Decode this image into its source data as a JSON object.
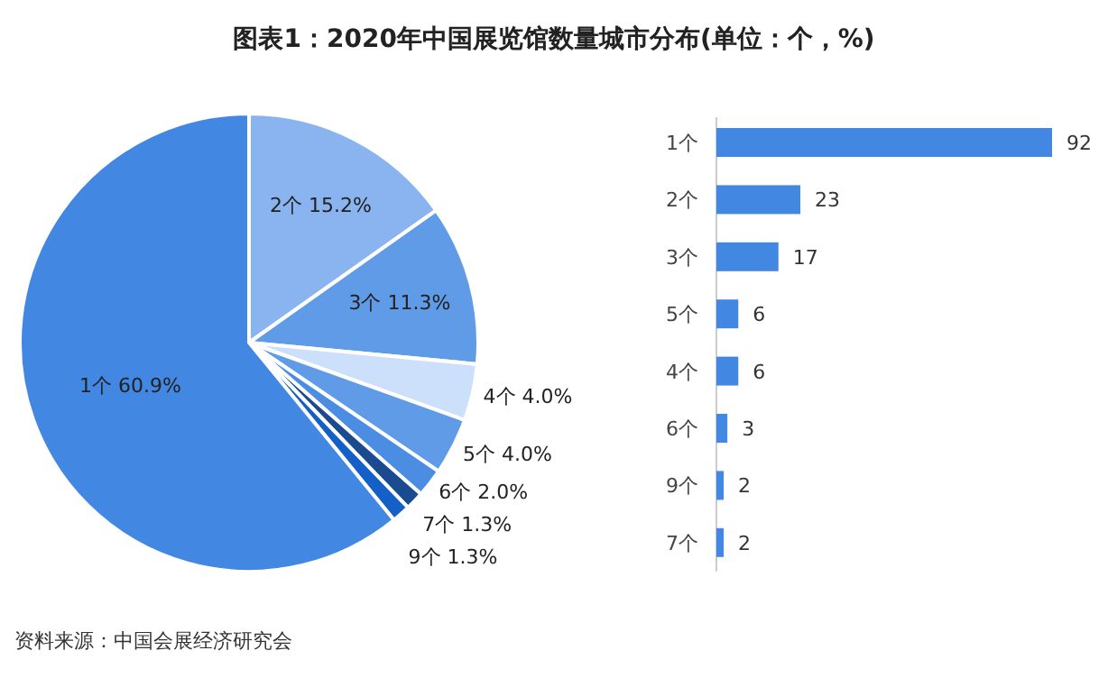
{
  "chart_data": [
    {
      "type": "pie",
      "title": "图表1：2020年中国展览馆数量城市分布(单位：个，%)",
      "categories": [
        "2个",
        "3个",
        "4个",
        "5个",
        "6个",
        "7个",
        "9个",
        "1个"
      ],
      "values": [
        15.2,
        11.3,
        4.0,
        4.0,
        2.0,
        1.3,
        1.3,
        60.9
      ],
      "value_labels": [
        "15.2%",
        "11.3%",
        "4.0%",
        "4.0%",
        "2.0%",
        "1.3%",
        "1.3%",
        "60.9%"
      ],
      "colors": [
        "#8ab4ef",
        "#5f9be6",
        "#cce0fb",
        "#5f9be6",
        "#4a8de3",
        "#1a4a8f",
        "#1560c8",
        "#4287e2"
      ],
      "annotations": [
        "资料来源：中国会展经济研究会"
      ]
    },
    {
      "type": "bar",
      "orientation": "horizontal",
      "categories": [
        "1个",
        "2个",
        "3个",
        "5个",
        "4个",
        "6个",
        "9个",
        "7个"
      ],
      "values": [
        92,
        23,
        17,
        6,
        6,
        3,
        2,
        2
      ],
      "color": "#4287e2",
      "data_labels": true
    }
  ]
}
